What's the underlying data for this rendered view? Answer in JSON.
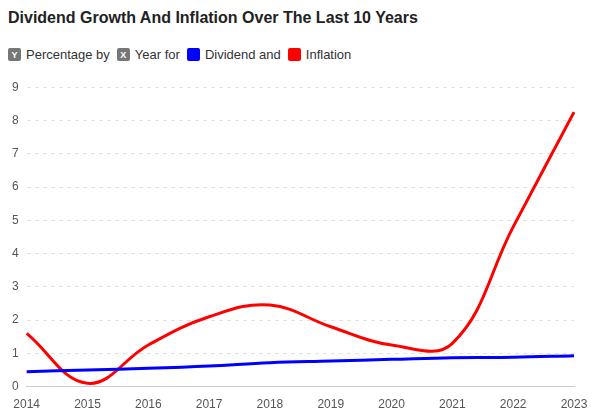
{
  "chart_data": {
    "type": "line",
    "title": "Dividend Growth And Inflation Over The Last 10 Years",
    "axis_keys": [
      {
        "badge": "Y",
        "label": "Percentage by"
      },
      {
        "badge": "X",
        "label": "Year for"
      }
    ],
    "categories": [
      "2014",
      "2015",
      "2016",
      "2017",
      "2018",
      "2019",
      "2020",
      "2021",
      "2022",
      "2023"
    ],
    "series": [
      {
        "name": "Dividend and",
        "color": "#0000ff",
        "values": [
          0.45,
          0.5,
          0.55,
          0.62,
          0.72,
          0.77,
          0.82,
          0.87,
          0.88,
          0.93
        ]
      },
      {
        "name": "Inflation",
        "color": "#ff0000",
        "values": [
          1.6,
          0.1,
          1.25,
          2.1,
          2.45,
          1.8,
          1.25,
          1.3,
          4.8,
          8.25
        ]
      }
    ],
    "ylim": [
      0,
      9
    ],
    "yticks": [
      0,
      1,
      2,
      3,
      4,
      5,
      6,
      7,
      8,
      9
    ],
    "grid": true
  }
}
